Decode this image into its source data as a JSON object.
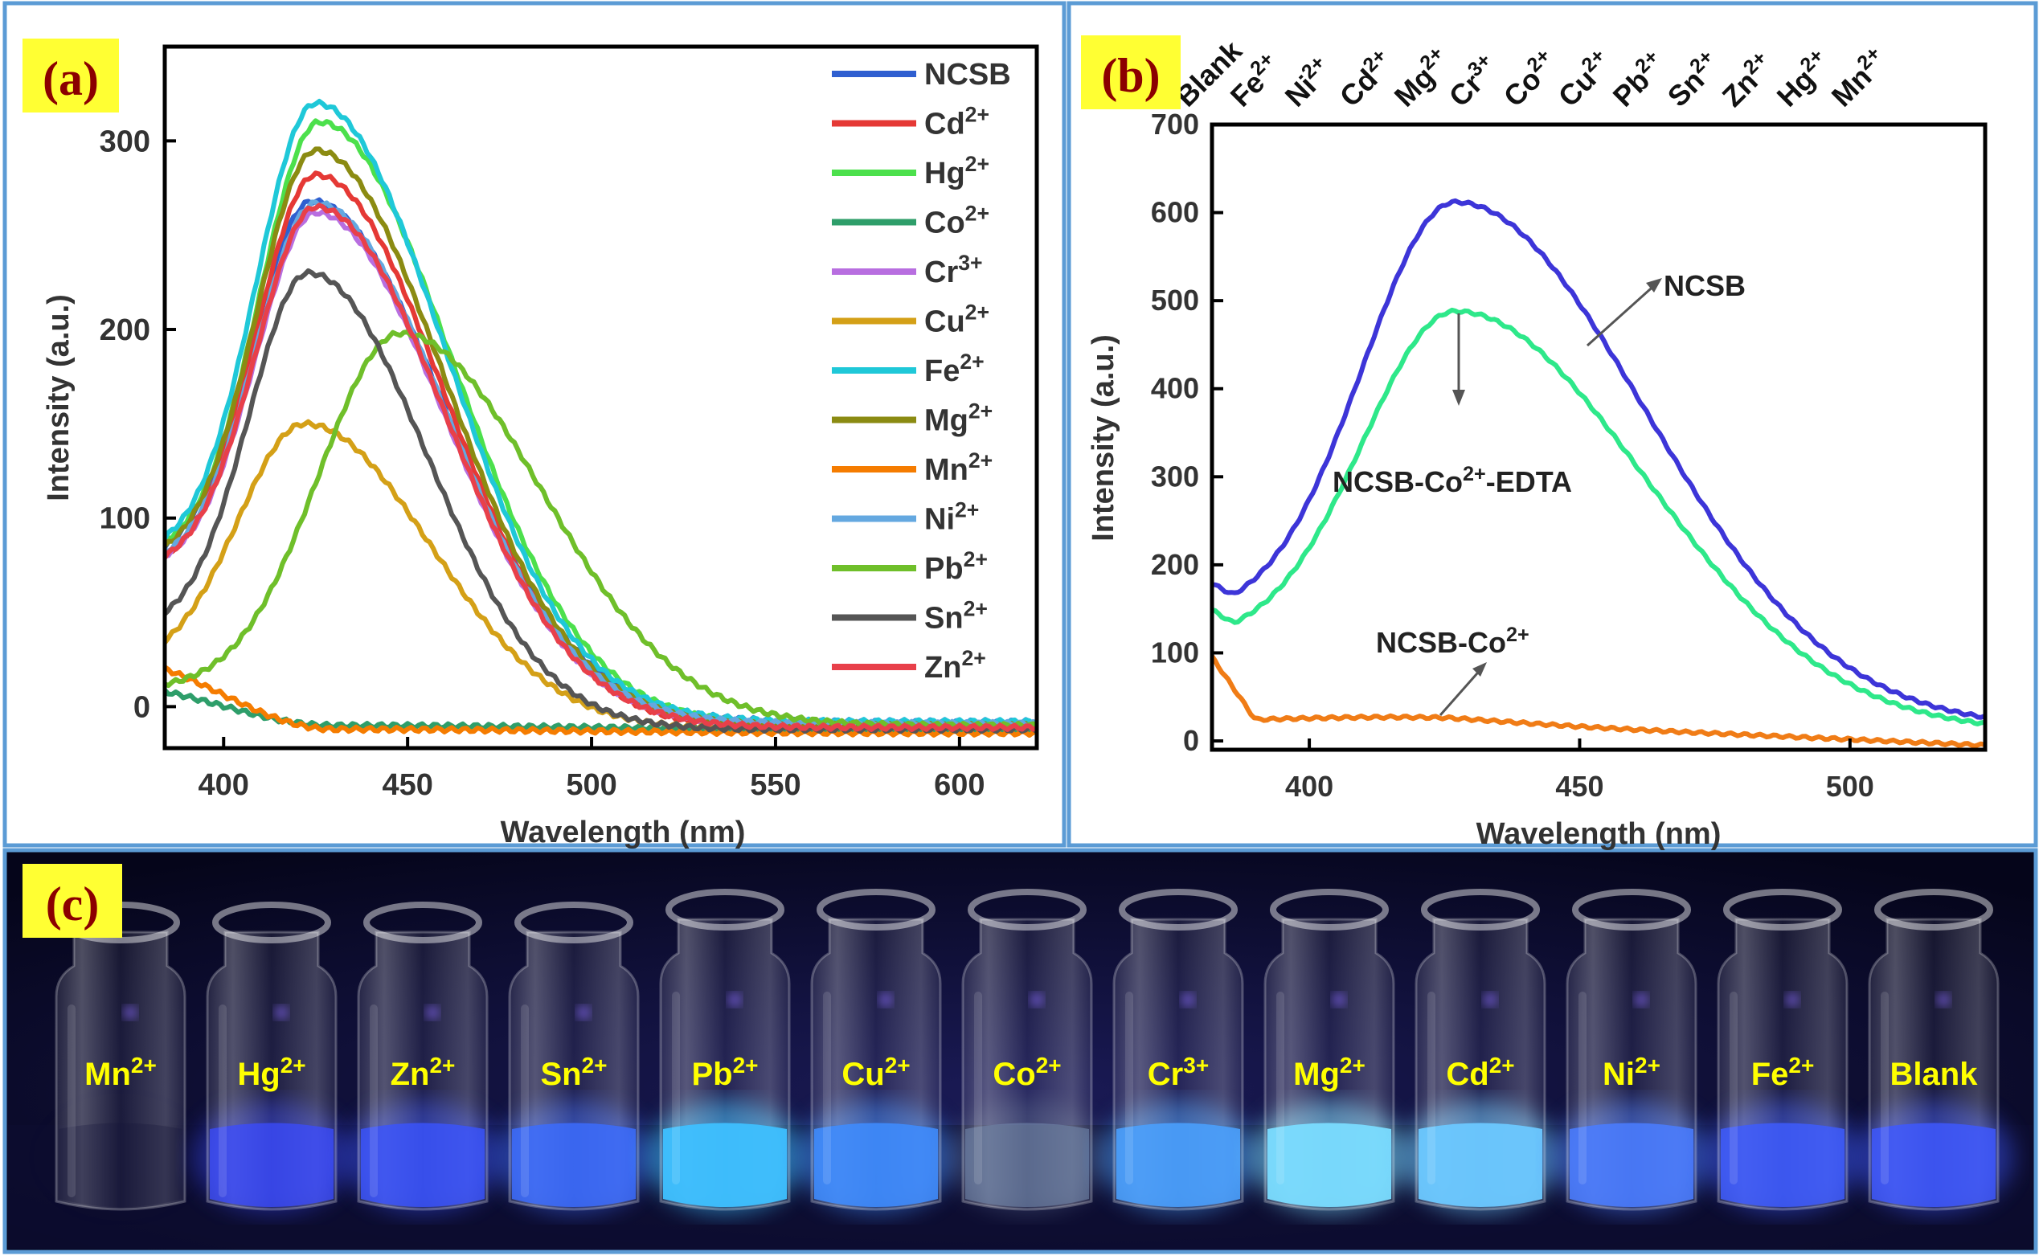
{
  "panels": {
    "a_label": "(a)",
    "b_label": "(b)",
    "c_label": "(c)"
  },
  "colors": {
    "frame_border": "#5b9bd5",
    "label_bg": "#ffff33",
    "label_text": "#8b0000",
    "vial_label": "#ffff00",
    "photo_bg": "#0a0a2e"
  },
  "chart_data": [
    {
      "panel": "a",
      "type": "line",
      "xlabel": "Wavelength (nm)",
      "ylabel": "Intensity (a.u.)",
      "xlim": [
        384,
        621
      ],
      "ylim": [
        -22,
        350
      ],
      "xticks": [
        400,
        450,
        500,
        550,
        600
      ],
      "yticks": [
        0,
        100,
        200,
        300
      ],
      "legend_position": "top-right",
      "series": [
        {
          "ion": "NCSB",
          "sup": "",
          "color": "#2f5fd0",
          "peak_x": 424,
          "peak_y": 268,
          "start_y": 85,
          "tail_y": -8,
          "w_left": 16,
          "w_right": 36
        },
        {
          "ion": "Cd",
          "sup": "2+",
          "color": "#e53935",
          "peak_x": 425,
          "peak_y": 282,
          "start_y": 80,
          "tail_y": -12,
          "w_left": 16,
          "w_right": 35
        },
        {
          "ion": "Hg",
          "sup": "2+",
          "color": "#4ce04c",
          "peak_x": 426,
          "peak_y": 310,
          "start_y": 88,
          "tail_y": -10,
          "w_left": 16,
          "w_right": 36
        },
        {
          "ion": "Co",
          "sup": "2+",
          "color": "#2e9e6a",
          "peak_x": 430,
          "peak_y": -10,
          "start_y": 8,
          "tail_y": -12,
          "w_left": 30,
          "w_right": 60
        },
        {
          "ion": "Cr",
          "sup": "3+",
          "color": "#b86ee0",
          "peak_x": 425,
          "peak_y": 262,
          "start_y": 80,
          "tail_y": -10,
          "w_left": 16,
          "w_right": 35
        },
        {
          "ion": "Cu",
          "sup": "2+",
          "color": "#d4a017",
          "peak_x": 422,
          "peak_y": 150,
          "start_y": 35,
          "tail_y": -12,
          "w_left": 18,
          "w_right": 34
        },
        {
          "ion": "Fe",
          "sup": "2+",
          "color": "#1fc8d8",
          "peak_x": 425,
          "peak_y": 320,
          "start_y": 90,
          "tail_y": -8,
          "w_left": 16,
          "w_right": 35
        },
        {
          "ion": "Mg",
          "sup": "2+",
          "color": "#8b8b12",
          "peak_x": 425,
          "peak_y": 295,
          "start_y": 85,
          "tail_y": -10,
          "w_left": 16,
          "w_right": 35
        },
        {
          "ion": "Mn",
          "sup": "2+",
          "color": "#f57c00",
          "peak_x": 430,
          "peak_y": -12,
          "start_y": 20,
          "tail_y": -14,
          "w_left": 30,
          "w_right": 60
        },
        {
          "ion": "Ni",
          "sup": "2+",
          "color": "#64a8e0",
          "peak_x": 425,
          "peak_y": 267,
          "start_y": 82,
          "tail_y": -9,
          "w_left": 16,
          "w_right": 35
        },
        {
          "ion": "Pb",
          "sup": "2+",
          "color": "#6fbf2a",
          "peak_x": 448,
          "peak_y": 198,
          "start_y": 12,
          "tail_y": -10,
          "w_left": 22,
          "w_right": 38
        },
        {
          "ion": "Sn",
          "sup": "2+",
          "color": "#555555",
          "peak_x": 423,
          "peak_y": 230,
          "start_y": 50,
          "tail_y": -12,
          "w_left": 16,
          "w_right": 32
        },
        {
          "ion": "Zn",
          "sup": "2+",
          "color": "#e8404a",
          "peak_x": 425,
          "peak_y": 265,
          "start_y": 80,
          "tail_y": -11,
          "w_left": 16,
          "w_right": 35
        }
      ]
    },
    {
      "panel": "b",
      "type": "line",
      "xlabel": "Wavelength (nm)",
      "ylabel": "Intensity (a.u.)",
      "xlim": [
        382,
        525
      ],
      "ylim": [
        -10,
        700
      ],
      "xticks": [
        400,
        450,
        500
      ],
      "yticks": [
        0,
        100,
        200,
        300,
        400,
        500,
        600,
        700
      ],
      "series": [
        {
          "name": "NCSB",
          "color": "#3d35d8",
          "peak_x": 427,
          "peak_y": 612,
          "start_y": 155,
          "tail_y": 15,
          "w_left": 17,
          "w_right": 35
        },
        {
          "name": "NCSB-Co2+-EDTA",
          "color": "#2ee88a",
          "peak_x": 427,
          "peak_y": 488,
          "start_y": 125,
          "tail_y": 10,
          "w_left": 17,
          "w_right": 35
        },
        {
          "name": "NCSB-Co2+",
          "color": "#f07c16",
          "peak_x": 420,
          "peak_y": 25,
          "start_y": 95,
          "tail_y": -5,
          "w_left": 30,
          "w_right": 50
        }
      ],
      "annotations": [
        {
          "text": "NCSB",
          "sup": "",
          "suffix": ""
        },
        {
          "text": "NCSB-Co",
          "sup": "2+",
          "suffix": "-EDTA"
        },
        {
          "text": "NCSB-Co",
          "sup": "2+",
          "suffix": ""
        }
      ],
      "top_labels": [
        {
          "ion": "Blank",
          "sup": ""
        },
        {
          "ion": "Fe",
          "sup": "2+"
        },
        {
          "ion": "Ni",
          "sup": "2+"
        },
        {
          "ion": "Cd",
          "sup": "2+"
        },
        {
          "ion": "Mg",
          "sup": "2+"
        },
        {
          "ion": "Cr",
          "sup": "3+"
        },
        {
          "ion": "Co",
          "sup": "2+"
        },
        {
          "ion": "Cu",
          "sup": "2+"
        },
        {
          "ion": "Pb",
          "sup": "2+"
        },
        {
          "ion": "Sn",
          "sup": "2+"
        },
        {
          "ion": "Zn",
          "sup": "2+"
        },
        {
          "ion": "Hg",
          "sup": "2+"
        },
        {
          "ion": "Mn",
          "sup": "2+"
        }
      ]
    }
  ],
  "photo": {
    "vials": [
      {
        "ion": "Mn",
        "sup": "2+",
        "glow": "#15153a",
        "intensity": 0.05
      },
      {
        "ion": "Hg",
        "sup": "2+",
        "glow": "#3a4cff",
        "intensity": 0.75
      },
      {
        "ion": "Zn",
        "sup": "2+",
        "glow": "#3a54ff",
        "intensity": 0.8
      },
      {
        "ion": "Sn",
        "sup": "2+",
        "glow": "#3c6cff",
        "intensity": 0.85
      },
      {
        "ion": "Pb",
        "sup": "2+",
        "glow": "#3ec0ff",
        "intensity": 1.0
      },
      {
        "ion": "Cu",
        "sup": "2+",
        "glow": "#3f8cff",
        "intensity": 0.9
      },
      {
        "ion": "Co",
        "sup": "2+",
        "glow": "#6f84a8",
        "intensity": 0.55
      },
      {
        "ion": "Cr",
        "sup": "3+",
        "glow": "#4aa0ff",
        "intensity": 0.9
      },
      {
        "ion": "Mg",
        "sup": "2+",
        "glow": "#7adcff",
        "intensity": 1.0
      },
      {
        "ion": "Cd",
        "sup": "2+",
        "glow": "#6cc8ff",
        "intensity": 1.0
      },
      {
        "ion": "Ni",
        "sup": "2+",
        "glow": "#4a7cff",
        "intensity": 0.9
      },
      {
        "ion": "Fe",
        "sup": "2+",
        "glow": "#3e5cff",
        "intensity": 0.85
      },
      {
        "ion": "Blank",
        "sup": "",
        "glow": "#3e58ff",
        "intensity": 0.85
      }
    ]
  }
}
